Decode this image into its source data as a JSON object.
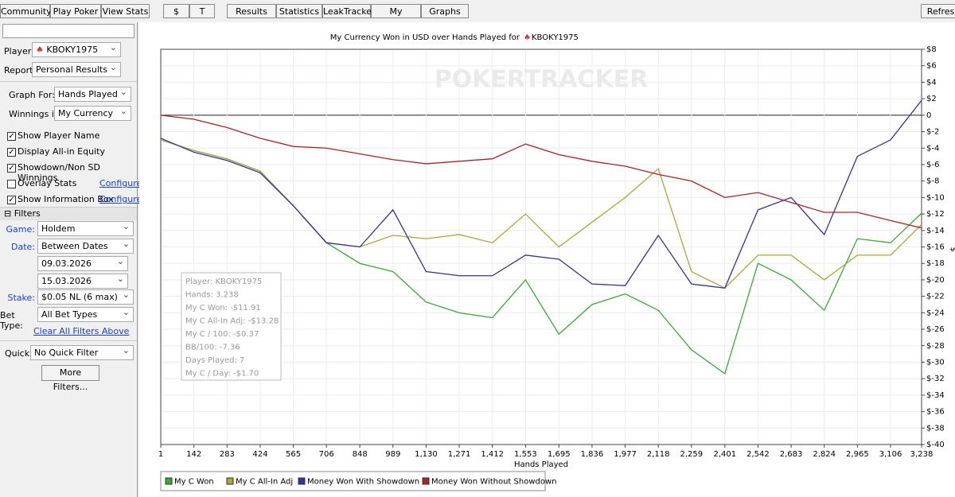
{
  "toolbar": [
    "Community",
    "Play Poker",
    "View Stats",
    "$",
    "T",
    "Results",
    "Statistics",
    "LeakTracker",
    "My Reports",
    "Graphs",
    "Refres"
  ],
  "sidebar": {
    "player_label": "Player:",
    "player": "KBOKY1975",
    "report_label": "Report:",
    "report": "Personal Results",
    "graph_for_label": "Graph For:",
    "graph_for": "Hands Played",
    "winnings_label": "Winnings in:",
    "winnings": "My Currency",
    "checks": [
      {
        "label": "Show Player Name",
        "checked": true
      },
      {
        "label": "Display All-in Equity",
        "checked": true
      },
      {
        "label": "Showdown/Non SD Winnings",
        "checked": true
      },
      {
        "label": "Overlay Stats",
        "checked": false,
        "link": "Configure"
      },
      {
        "label": "Show Information Box",
        "checked": true,
        "link": "Configure"
      }
    ],
    "filters_title": "Filters",
    "game_label": "Game:",
    "game": "Holdem",
    "date_label": "Date:",
    "date": "Between Dates",
    "date_from": "09.03.2026",
    "date_to": "15.03.2026",
    "stake_label": "Stake:",
    "stake": "$0.05 NL (6 max)",
    "bet_label": "Bet Type:",
    "bet": "All Bet Types",
    "clear": "Clear All Filters Above",
    "quick_label": "Quick:",
    "quick": "No Quick Filter",
    "more": "More Filters..."
  },
  "chart_data": {
    "type": "line",
    "title": "My Currency Won in USD over Hands Played for",
    "title_player": "KBOKY1975",
    "watermark": "POKERTRACKER",
    "x_label": "Hands Played",
    "y_label": "$",
    "x": [
      1,
      142,
      283,
      424,
      565,
      706,
      848,
      989,
      1130,
      1271,
      1412,
      1553,
      1695,
      1836,
      1977,
      2118,
      2259,
      2401,
      2542,
      2683,
      2824,
      2965,
      3106,
      3238
    ],
    "xlim": [
      1,
      3238
    ],
    "xticks": [
      1,
      142,
      283,
      424,
      565,
      706,
      848,
      989,
      {
        "value": 1130,
        "label": "1,130"
      },
      {
        "value": 1271,
        "label": "1,271"
      },
      {
        "value": 1412,
        "label": "1,412"
      },
      {
        "value": 1553,
        "label": "1,553"
      },
      {
        "value": 1695,
        "label": "1,695"
      },
      {
        "value": 1836,
        "label": "1,836"
      },
      {
        "value": 1977,
        "label": "1,977"
      },
      {
        "value": 2118,
        "label": "2,118"
      },
      {
        "value": 2259,
        "label": "2,259"
      },
      {
        "value": 2401,
        "label": "2,401"
      },
      {
        "value": 2542,
        "label": "2,542"
      },
      {
        "value": 2683,
        "label": "2,683"
      },
      {
        "value": 2824,
        "label": "2,824"
      },
      {
        "value": 2965,
        "label": "2,965"
      },
      {
        "value": 3106,
        "label": "3,106"
      },
      {
        "value": 3238,
        "label": "3,238"
      }
    ],
    "ylim": [
      -40,
      8
    ],
    "yticks": [
      {
        "value": 8,
        "label": "$8"
      },
      {
        "value": 6,
        "label": "$6"
      },
      {
        "value": 4,
        "label": "$4"
      },
      {
        "value": 2,
        "label": "$2"
      },
      0,
      {
        "value": -2,
        "label": "$-2"
      },
      {
        "value": -4,
        "label": "$-4"
      },
      {
        "value": -6,
        "label": "$-6"
      },
      {
        "value": -8,
        "label": "$-8"
      },
      {
        "value": -10,
        "label": "$-10"
      },
      {
        "value": -12,
        "label": "$-12"
      },
      {
        "value": -14,
        "label": "$-14"
      },
      {
        "value": -16,
        "label": "$-16"
      },
      {
        "value": -18,
        "label": "$-18"
      },
      {
        "value": -20,
        "label": "$-20"
      },
      {
        "value": -22,
        "label": "$-22"
      },
      {
        "value": -24,
        "label": "$-24"
      },
      {
        "value": -26,
        "label": "$-26"
      },
      {
        "value": -28,
        "label": "$-28"
      },
      {
        "value": -30,
        "label": "$-30"
      },
      {
        "value": -32,
        "label": "$-32"
      },
      {
        "value": -34,
        "label": "$-34"
      },
      {
        "value": -36,
        "label": "$-36"
      },
      {
        "value": -38,
        "label": "$-38"
      },
      {
        "value": -40,
        "label": "$-40"
      }
    ],
    "grid": true,
    "series": [
      {
        "name": "My C Won",
        "color": "#3aa935",
        "values": [
          -3,
          -4.3,
          -5.3,
          -6.8,
          -11,
          -15.5,
          -18,
          -19,
          -22.7,
          -24,
          -24.6,
          -20,
          -26.6,
          -23,
          -21.7,
          -23.7,
          -28.5,
          -31.4,
          -18,
          -20,
          -23.7,
          -15,
          -15.5,
          -11.91
        ]
      },
      {
        "name": "My C All-In Adj",
        "color": "#a9a935",
        "values": [
          -3,
          -4.3,
          -5.3,
          -6.8,
          -11,
          -15.5,
          -16,
          -14.6,
          -15,
          -14.5,
          -15.5,
          -12,
          -16,
          -13,
          -10,
          -6.5,
          -19,
          -21,
          -17,
          -17,
          -20,
          -17,
          -17,
          -13.28
        ]
      },
      {
        "name": "Money Won With Showdown",
        "color": "#3232a0",
        "values": [
          -2.8,
          -4.5,
          -5.5,
          -7,
          -11,
          -15.5,
          -16,
          -11.5,
          -19,
          -19.5,
          -19.5,
          -17,
          -17.5,
          -20.5,
          -20.7,
          -14.6,
          -20.5,
          -21,
          -11.5,
          -10,
          -14.5,
          -5,
          -3,
          1.8
        ]
      },
      {
        "name": "Money Won Without Showdown",
        "color": "#b02222",
        "values": [
          0,
          -0.5,
          -1.5,
          -2.8,
          -3.8,
          -4,
          -4.7,
          -5.4,
          -5.9,
          -5.6,
          -5.3,
          -3.5,
          -4.8,
          -5.6,
          -6.2,
          -7.2,
          -8,
          -10,
          -9.4,
          -10.6,
          -11.8,
          -11.8,
          -12.8,
          -13.7
        ]
      }
    ],
    "info_box": [
      "Player: KBOKY1975",
      "Hands: 3,238",
      "My C Won: -$11.91",
      "My C All-In Adj: -$13.28",
      "My C / 100: -$0.37",
      "BB/100: -7.36",
      "Days Played: 7",
      "My C / Day: -$1.70"
    ]
  }
}
